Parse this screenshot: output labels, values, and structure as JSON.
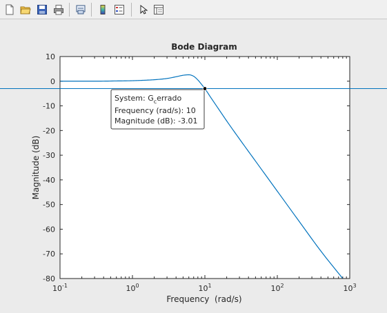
{
  "toolbar": {
    "buttons": [
      {
        "name": "new-figure-icon"
      },
      {
        "name": "open-file-icon"
      },
      {
        "name": "save-icon"
      },
      {
        "name": "print-icon"
      },
      {
        "name": "link-axes-icon"
      },
      {
        "name": "insert-colorbar-icon"
      },
      {
        "name": "insert-legend-icon"
      },
      {
        "name": "edit-plot-cursor-icon"
      },
      {
        "name": "property-inspector-icon"
      }
    ]
  },
  "chart_data": {
    "type": "line",
    "title": "Bode Diagram",
    "xlabel": "Frequency  (rad/s)",
    "ylabel": "Magnitude (dB)",
    "x_scale": "log",
    "xlim": [
      0.1,
      1000
    ],
    "ylim": [
      -80,
      10
    ],
    "x_ticks": [
      {
        "value": 0.1,
        "base": "10",
        "exp": "-1"
      },
      {
        "value": 1,
        "base": "10",
        "exp": "0"
      },
      {
        "value": 10,
        "base": "10",
        "exp": "1"
      },
      {
        "value": 100,
        "base": "10",
        "exp": "2"
      },
      {
        "value": 1000,
        "base": "10",
        "exp": "3"
      }
    ],
    "y_ticks": [
      10,
      0,
      -10,
      -20,
      -30,
      -40,
      -50,
      -60,
      -70,
      -80
    ],
    "series": [
      {
        "color": "#0072bd",
        "x": [
          0.1,
          0.3,
          0.6,
          1,
          1.5,
          2,
          3,
          4,
          5,
          6,
          7,
          8,
          9,
          10,
          12,
          15,
          20,
          30,
          50,
          100,
          200,
          400,
          800
        ],
        "y": [
          0,
          0,
          0.1,
          0.2,
          0.4,
          0.6,
          1.1,
          1.8,
          2.4,
          2.6,
          2.0,
          0.5,
          -1.3,
          -3.01,
          -6.5,
          -10.7,
          -16.1,
          -23.4,
          -32.4,
          -44.6,
          -56.8,
          -68.9,
          -80
        ]
      }
    ],
    "reference_line": {
      "y": -3.01,
      "color": "#0072bd"
    },
    "datatip": {
      "x": 10,
      "y": -3.01,
      "system_prefix": "System: G",
      "system_subscript": "c",
      "system_suffix": "errado",
      "frequency_text": "Frequency (rad/s): 10",
      "magnitude_text": "Magnitude (dB): -3.01"
    },
    "grid": false
  }
}
